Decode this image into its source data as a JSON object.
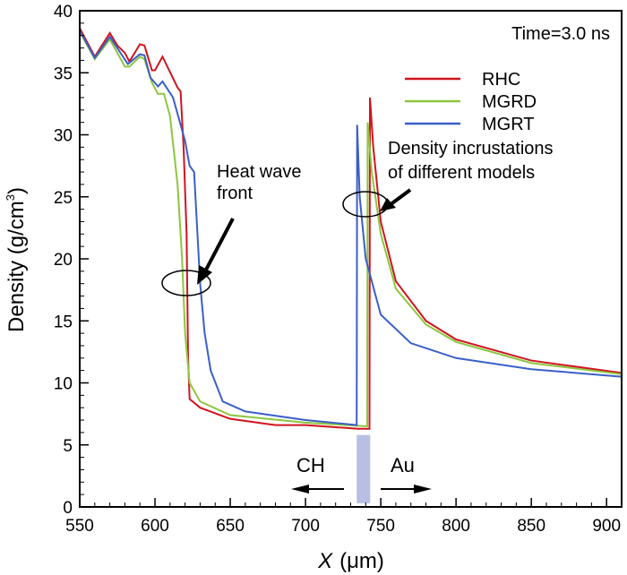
{
  "chart_data": {
    "type": "line",
    "title": "Time=3.0 ns",
    "xlabel_italic": "X",
    "xlabel_unit": "(μm)",
    "ylabel": "Density (g/cm",
    "ylabel_sup": "3",
    "ylabel_close": ")",
    "xlim": [
      550,
      910
    ],
    "ylim": [
      0,
      40
    ],
    "xticks": [
      550,
      600,
      650,
      700,
      750,
      800,
      850,
      900
    ],
    "yticks": [
      0,
      5,
      10,
      15,
      20,
      25,
      30,
      35,
      40
    ],
    "legend_position": "top-right",
    "series": [
      {
        "name": "RHC",
        "color": "#d0141e",
        "points": [
          [
            550,
            38.6
          ],
          [
            560,
            36.3
          ],
          [
            570,
            38.2
          ],
          [
            575,
            37.2
          ],
          [
            580,
            36.6
          ],
          [
            583,
            35.9
          ],
          [
            590,
            37.3
          ],
          [
            593,
            37.2
          ],
          [
            598,
            35.2
          ],
          [
            600,
            35.2
          ],
          [
            605,
            36.3
          ],
          [
            615,
            33.8
          ],
          [
            617,
            33.5
          ],
          [
            619,
            29
          ],
          [
            621,
            22
          ],
          [
            622,
            12
          ],
          [
            623,
            8.7
          ],
          [
            630,
            8
          ],
          [
            650,
            7.1
          ],
          [
            680,
            6.6
          ],
          [
            700,
            6.6
          ],
          [
            735,
            6.3
          ],
          [
            742.5,
            6.3
          ],
          [
            742.8,
            33
          ],
          [
            745,
            29
          ],
          [
            750,
            23
          ],
          [
            760,
            18.2
          ],
          [
            780,
            15
          ],
          [
            800,
            13.5
          ],
          [
            850,
            11.8
          ],
          [
            910,
            10.8
          ]
        ]
      },
      {
        "name": "MGRD",
        "color": "#8cc63f",
        "points": [
          [
            550,
            38.3
          ],
          [
            560,
            36.1
          ],
          [
            570,
            37.7
          ],
          [
            580,
            35.5
          ],
          [
            583,
            35.5
          ],
          [
            590,
            36.3
          ],
          [
            593,
            36.1
          ],
          [
            598,
            34.2
          ],
          [
            602,
            33.3
          ],
          [
            606,
            33.3
          ],
          [
            610,
            31.5
          ],
          [
            615,
            26
          ],
          [
            618,
            20
          ],
          [
            620,
            14
          ],
          [
            623,
            10
          ],
          [
            630,
            8.5
          ],
          [
            650,
            7.4
          ],
          [
            700,
            6.8
          ],
          [
            741,
            6.5
          ],
          [
            741.3,
            31
          ],
          [
            744,
            27
          ],
          [
            750,
            22
          ],
          [
            760,
            17.6
          ],
          [
            780,
            14.7
          ],
          [
            800,
            13.3
          ],
          [
            850,
            11.6
          ],
          [
            910,
            10.7
          ]
        ]
      },
      {
        "name": "MGRT",
        "color": "#3a5fc8",
        "points": [
          [
            550,
            38.4
          ],
          [
            560,
            36.2
          ],
          [
            570,
            37.9
          ],
          [
            582,
            35.7
          ],
          [
            590,
            36.5
          ],
          [
            593,
            36.4
          ],
          [
            597,
            34.6
          ],
          [
            602,
            33.9
          ],
          [
            605,
            34.3
          ],
          [
            612,
            33
          ],
          [
            620,
            29.5
          ],
          [
            623,
            27.5
          ],
          [
            626,
            27
          ],
          [
            630,
            18
          ],
          [
            633,
            14
          ],
          [
            637,
            11
          ],
          [
            645,
            8.5
          ],
          [
            660,
            7.7
          ],
          [
            700,
            7.0
          ],
          [
            734,
            6.6
          ],
          [
            734.3,
            30.8
          ],
          [
            736,
            25
          ],
          [
            740,
            20
          ],
          [
            750,
            15.5
          ],
          [
            770,
            13.2
          ],
          [
            800,
            12
          ],
          [
            850,
            11.1
          ],
          [
            910,
            10.5
          ]
        ]
      }
    ],
    "annotations": {
      "heat_wave": [
        "Heat wave",
        "front"
      ],
      "incrustations": [
        "Density incrustations",
        "of different models"
      ],
      "ch": "CH",
      "au": "Au"
    },
    "interface_band": {
      "x": [
        734,
        743
      ],
      "y": [
        0.3,
        5.8
      ],
      "color": "#b8bfe3"
    }
  }
}
